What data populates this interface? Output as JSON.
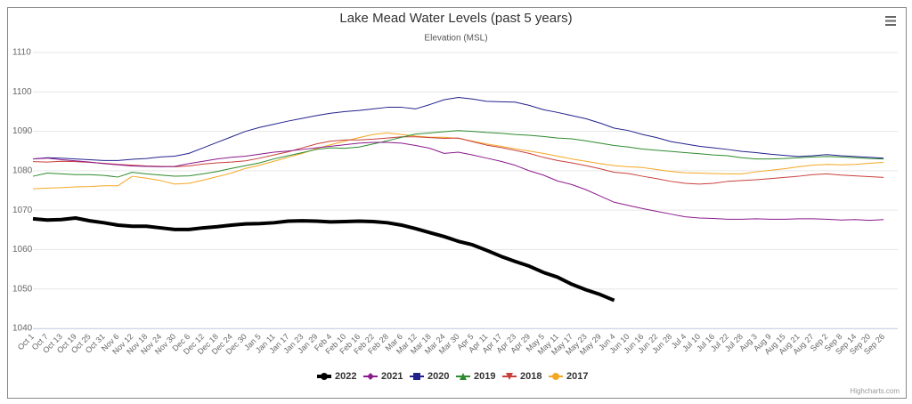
{
  "chart_data": {
    "type": "line",
    "title": "Lake Mead Water Levels (past 5 years)",
    "subtitle": "Elevation (MSL)",
    "credits": "Highcharts.com",
    "categories": [
      "Oct 1",
      "Oct 7",
      "Oct 13",
      "Oct 19",
      "Oct 25",
      "Oct 31",
      "Nov 6",
      "Nov 12",
      "Nov 18",
      "Nov 24",
      "Nov 30",
      "Dec 6",
      "Dec 12",
      "Dec 18",
      "Dec 24",
      "Dec 30",
      "Jan 5",
      "Jan 11",
      "Jan 17",
      "Jan 23",
      "Jan 29",
      "Feb 4",
      "Feb 10",
      "Feb 16",
      "Feb 22",
      "Feb 28",
      "Mar 6",
      "Mar 12",
      "Mar 18",
      "Mar 24",
      "Mar 30",
      "Apr 5",
      "Apr 11",
      "Apr 17",
      "Apr 23",
      "Apr 29",
      "May 5",
      "May 11",
      "May 17",
      "May 23",
      "May 29",
      "Jun 4",
      "Jun 10",
      "Jun 16",
      "Jun 22",
      "Jun 28",
      "Jul 4",
      "Jul 10",
      "Jul 16",
      "Jul 22",
      "Jul 28",
      "Aug 3",
      "Aug 9",
      "Aug 15",
      "Aug 21",
      "Aug 27",
      "Sep 2",
      "Sep 8",
      "Sep 14",
      "Sep 20",
      "Sep 26"
    ],
    "ylim": [
      1040,
      1110
    ],
    "yticks": [
      1040,
      1050,
      1060,
      1070,
      1080,
      1090,
      1100,
      1110
    ],
    "grid": true,
    "legend": "bottom",
    "series": [
      {
        "name": "2022",
        "color": "#000000",
        "marker": "circle",
        "line_width": 4,
        "values": [
          1067.8,
          1067.5,
          1067.6,
          1068.0,
          1067.3,
          1066.8,
          1066.2,
          1065.9,
          1065.9,
          1065.5,
          1065.1,
          1065.1,
          1065.5,
          1065.8,
          1066.2,
          1066.5,
          1066.6,
          1066.8,
          1067.2,
          1067.3,
          1067.2,
          1067.0,
          1067.1,
          1067.2,
          1067.1,
          1066.8,
          1066.2,
          1065.3,
          1064.3,
          1063.3,
          1062.1,
          1061.2,
          1059.8,
          1058.3,
          1057.0,
          1055.8,
          1054.2,
          1053.0,
          1051.2,
          1049.8,
          1048.6,
          1047.1,
          null,
          null,
          null,
          null,
          null,
          null,
          null,
          null,
          null,
          null,
          null,
          null,
          null,
          null,
          null,
          null,
          null,
          null,
          null
        ]
      },
      {
        "name": "2021",
        "color": "#8b1a8b",
        "marker": "diamond",
        "line_width": 1,
        "values": [
          1083.0,
          1083.2,
          1082.8,
          1082.5,
          1082.2,
          1081.8,
          1081.5,
          1081.2,
          1081.1,
          1081.0,
          1081.1,
          1081.8,
          1082.4,
          1083.0,
          1083.4,
          1083.7,
          1084.2,
          1084.7,
          1085.0,
          1085.4,
          1085.8,
          1086.2,
          1086.6,
          1087.0,
          1087.2,
          1087.2,
          1087.0,
          1086.4,
          1085.7,
          1084.4,
          1084.7,
          1084.0,
          1083.2,
          1082.4,
          1081.4,
          1080.0,
          1078.9,
          1077.4,
          1076.5,
          1075.2,
          1073.6,
          1072.0,
          1071.2,
          1070.4,
          1069.7,
          1069.0,
          1068.3,
          1068.0,
          1067.9,
          1067.7,
          1067.7,
          1067.8,
          1067.7,
          1067.7,
          1067.8,
          1067.8,
          1067.7,
          1067.5,
          1067.6,
          1067.4,
          1067.6
        ]
      },
      {
        "name": "2020",
        "color": "#22228c",
        "marker": "square",
        "line_width": 1,
        "values": [
          1083.0,
          1083.3,
          1083.2,
          1083.0,
          1082.8,
          1082.6,
          1082.6,
          1082.9,
          1083.1,
          1083.5,
          1083.7,
          1084.4,
          1085.8,
          1087.2,
          1088.6,
          1090.0,
          1091.0,
          1091.8,
          1092.6,
          1093.3,
          1094.0,
          1094.6,
          1095.0,
          1095.3,
          1095.7,
          1096.1,
          1096.1,
          1095.7,
          1096.8,
          1098.0,
          1098.6,
          1098.2,
          1097.6,
          1097.5,
          1097.4,
          1096.6,
          1095.5,
          1094.8,
          1094.0,
          1093.2,
          1092.1,
          1090.8,
          1090.2,
          1089.2,
          1088.4,
          1087.4,
          1086.8,
          1086.2,
          1085.8,
          1085.4,
          1084.9,
          1084.6,
          1084.2,
          1083.9,
          1083.6,
          1083.8,
          1084.1,
          1083.8,
          1083.6,
          1083.4,
          1083.2
        ]
      },
      {
        "name": "2019",
        "color": "#2e8b2e",
        "marker": "triangle",
        "line_width": 1,
        "values": [
          1078.6,
          1079.4,
          1079.2,
          1079.0,
          1079.0,
          1078.8,
          1078.4,
          1079.6,
          1079.2,
          1078.9,
          1078.6,
          1078.7,
          1079.2,
          1079.8,
          1080.6,
          1081.3,
          1082.0,
          1083.0,
          1083.8,
          1084.6,
          1085.4,
          1085.8,
          1085.7,
          1086.0,
          1086.8,
          1087.6,
          1088.5,
          1089.3,
          1089.6,
          1089.9,
          1090.2,
          1090.0,
          1089.7,
          1089.5,
          1089.2,
          1089.0,
          1088.7,
          1088.3,
          1088.1,
          1087.6,
          1087.0,
          1086.4,
          1086.0,
          1085.5,
          1085.2,
          1084.9,
          1084.6,
          1084.3,
          1084.0,
          1083.8,
          1083.3,
          1083.0,
          1083.0,
          1083.1,
          1083.3,
          1083.5,
          1083.6,
          1083.5,
          1083.3,
          1083.1,
          1083.0
        ]
      },
      {
        "name": "2018",
        "color": "#c8403c",
        "marker": "triangle-down",
        "line_width": 1,
        "values": [
          1082.3,
          1082.2,
          1082.4,
          1082.3,
          1082.1,
          1081.9,
          1081.6,
          1081.4,
          1081.2,
          1081.1,
          1081.0,
          1081.2,
          1081.7,
          1082.0,
          1082.2,
          1082.5,
          1083.2,
          1084.0,
          1084.8,
          1085.8,
          1086.8,
          1087.5,
          1087.8,
          1087.8,
          1088.0,
          1088.3,
          1088.6,
          1088.6,
          1088.4,
          1088.2,
          1088.3,
          1087.4,
          1086.5,
          1085.9,
          1085.2,
          1084.4,
          1083.4,
          1082.6,
          1082.0,
          1081.3,
          1080.5,
          1079.6,
          1079.3,
          1078.6,
          1078.0,
          1077.3,
          1076.8,
          1076.6,
          1076.8,
          1077.3,
          1077.5,
          1077.7,
          1078.0,
          1078.3,
          1078.6,
          1079.0,
          1079.2,
          1078.9,
          1078.7,
          1078.5,
          1078.3
        ]
      },
      {
        "name": "2017",
        "color": "#f5a623",
        "marker": "circle",
        "line_width": 1,
        "values": [
          1075.4,
          1075.6,
          1075.7,
          1075.9,
          1076.0,
          1076.2,
          1076.2,
          1078.6,
          1078.1,
          1077.5,
          1076.6,
          1076.8,
          1077.6,
          1078.5,
          1079.4,
          1080.6,
          1081.4,
          1082.4,
          1083.4,
          1084.4,
          1085.6,
          1086.6,
          1087.5,
          1088.4,
          1089.2,
          1089.6,
          1089.2,
          1088.8,
          1088.5,
          1088.5,
          1088.2,
          1087.5,
          1086.8,
          1086.2,
          1085.6,
          1085.0,
          1084.4,
          1083.7,
          1083.0,
          1082.4,
          1081.8,
          1081.3,
          1081.0,
          1080.8,
          1080.3,
          1079.8,
          1079.5,
          1079.4,
          1079.3,
          1079.2,
          1079.2,
          1079.7,
          1080.1,
          1080.5,
          1081.0,
          1081.4,
          1081.6,
          1081.5,
          1081.6,
          1081.9,
          1082.1
        ]
      }
    ]
  }
}
